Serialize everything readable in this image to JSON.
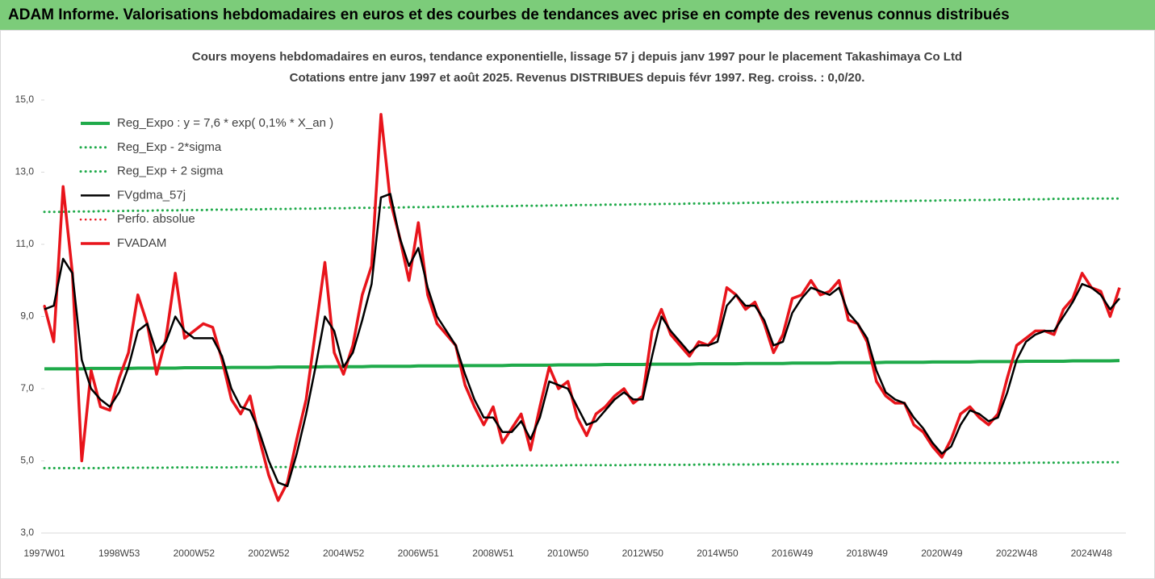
{
  "chart_data": {
    "type": "line",
    "title": "ADAM Informe. Valorisations hebdomadaires en euros et des courbes de tendances avec prise en compte des revenus connus distribués",
    "subtitle": [
      "Cours moyens hebdomadaires en euros, tendance exponentielle, lissage 57 j depuis janv 1997 pour le placement Takashimaya Co Ltd",
      "Cotations entre janv 1997 et août 2025. Revenus DISTRIBUES depuis févr 1997. Reg. croiss. : 0,0/20."
    ],
    "categories": [
      "1997W01",
      null,
      null,
      null,
      null,
      null,
      null,
      null,
      "1998W53",
      null,
      null,
      null,
      null,
      null,
      null,
      null,
      "2000W52",
      null,
      null,
      null,
      null,
      null,
      null,
      null,
      "2002W52",
      null,
      null,
      null,
      null,
      null,
      null,
      null,
      "2004W52",
      null,
      null,
      null,
      null,
      null,
      null,
      null,
      "2006W51",
      null,
      null,
      null,
      null,
      null,
      null,
      null,
      "2008W51",
      null,
      null,
      null,
      null,
      null,
      null,
      null,
      "2010W50",
      null,
      null,
      null,
      null,
      null,
      null,
      null,
      "2012W50",
      null,
      null,
      null,
      null,
      null,
      null,
      null,
      "2014W50",
      null,
      null,
      null,
      null,
      null,
      null,
      null,
      "2016W49",
      null,
      null,
      null,
      null,
      null,
      null,
      null,
      "2018W49",
      null,
      null,
      null,
      null,
      null,
      null,
      null,
      "2020W49",
      null,
      null,
      null,
      null,
      null,
      null,
      null,
      "2022W48",
      null,
      null,
      null,
      null,
      null,
      null,
      null,
      "2024W48",
      null,
      null,
      null
    ],
    "ylim": [
      3,
      15
    ],
    "yticks": [
      {
        "value": 3,
        "label": "3,0"
      },
      {
        "value": 5,
        "label": "5,0"
      },
      {
        "value": 7,
        "label": "7,0"
      },
      {
        "value": 9,
        "label": "9,0"
      },
      {
        "value": 11,
        "label": "11,0"
      },
      {
        "value": 13,
        "label": "13,0"
      },
      {
        "value": 15,
        "label": "15,0"
      }
    ],
    "grid": false,
    "legend": "top-left",
    "series": [
      {
        "name": "Reg_Expo : y = 7,6 * exp( 0,1% *  X_an )",
        "color": "#1faa4a",
        "dotted": false,
        "width": 4,
        "values": [
          7.55,
          7.55,
          7.55,
          7.55,
          7.55,
          7.56,
          7.56,
          7.56,
          7.56,
          7.56,
          7.57,
          7.57,
          7.57,
          7.57,
          7.57,
          7.58,
          7.58,
          7.58,
          7.58,
          7.58,
          7.59,
          7.59,
          7.59,
          7.59,
          7.59,
          7.6,
          7.6,
          7.6,
          7.6,
          7.6,
          7.61,
          7.61,
          7.61,
          7.61,
          7.61,
          7.62,
          7.62,
          7.62,
          7.62,
          7.62,
          7.63,
          7.63,
          7.63,
          7.63,
          7.63,
          7.64,
          7.64,
          7.64,
          7.64,
          7.64,
          7.65,
          7.65,
          7.65,
          7.65,
          7.65,
          7.66,
          7.66,
          7.66,
          7.66,
          7.66,
          7.67,
          7.67,
          7.67,
          7.67,
          7.67,
          7.68,
          7.68,
          7.68,
          7.68,
          7.68,
          7.69,
          7.69,
          7.69,
          7.69,
          7.69,
          7.7,
          7.7,
          7.7,
          7.7,
          7.7,
          7.71,
          7.71,
          7.71,
          7.71,
          7.71,
          7.72,
          7.72,
          7.72,
          7.72,
          7.72,
          7.73,
          7.73,
          7.73,
          7.73,
          7.73,
          7.74,
          7.74,
          7.74,
          7.74,
          7.74,
          7.75,
          7.75,
          7.75,
          7.75,
          7.75,
          7.76,
          7.76,
          7.76,
          7.76,
          7.76,
          7.77,
          7.77,
          7.77,
          7.77,
          7.77,
          7.78
        ]
      },
      {
        "name": "Reg_Exp - 2*sigma",
        "color": "#1faa4a",
        "dotted": true,
        "width": 3,
        "values": [
          4.8,
          4.8,
          4.8,
          4.8,
          4.8,
          4.8,
          4.8,
          4.81,
          4.81,
          4.81,
          4.81,
          4.81,
          4.81,
          4.81,
          4.82,
          4.82,
          4.82,
          4.82,
          4.82,
          4.82,
          4.82,
          4.83,
          4.83,
          4.83,
          4.83,
          4.83,
          4.83,
          4.83,
          4.84,
          4.84,
          4.84,
          4.84,
          4.84,
          4.84,
          4.84,
          4.85,
          4.85,
          4.85,
          4.85,
          4.85,
          4.85,
          4.85,
          4.86,
          4.86,
          4.86,
          4.86,
          4.86,
          4.86,
          4.86,
          4.87,
          4.87,
          4.87,
          4.87,
          4.87,
          4.87,
          4.87,
          4.88,
          4.88,
          4.88,
          4.88,
          4.88,
          4.88,
          4.88,
          4.89,
          4.89,
          4.89,
          4.89,
          4.89,
          4.89,
          4.89,
          4.9,
          4.9,
          4.9,
          4.9,
          4.9,
          4.9,
          4.9,
          4.91,
          4.91,
          4.91,
          4.91,
          4.91,
          4.91,
          4.91,
          4.92,
          4.92,
          4.92,
          4.92,
          4.92,
          4.92,
          4.92,
          4.93,
          4.93,
          4.93,
          4.93,
          4.93,
          4.93,
          4.93,
          4.94,
          4.94,
          4.94,
          4.94,
          4.94,
          4.94,
          4.94,
          4.95,
          4.95,
          4.95,
          4.95,
          4.95,
          4.95,
          4.95,
          4.96,
          4.96,
          4.96,
          4.96
        ]
      },
      {
        "name": "Reg_Exp + 2 sigma",
        "color": "#1faa4a",
        "dotted": true,
        "width": 3,
        "values": [
          11.9,
          11.9,
          11.9,
          11.91,
          11.91,
          11.91,
          11.92,
          11.92,
          11.92,
          11.93,
          11.93,
          11.93,
          11.94,
          11.94,
          11.94,
          11.95,
          11.95,
          11.95,
          11.96,
          11.96,
          11.96,
          11.97,
          11.97,
          11.97,
          11.98,
          11.98,
          11.98,
          11.99,
          11.99,
          11.99,
          12.0,
          12.0,
          12.0,
          12.01,
          12.01,
          12.01,
          12.02,
          12.02,
          12.02,
          12.03,
          12.03,
          12.03,
          12.04,
          12.04,
          12.04,
          12.05,
          12.05,
          12.05,
          12.06,
          12.06,
          12.06,
          12.07,
          12.07,
          12.07,
          12.08,
          12.08,
          12.08,
          12.09,
          12.09,
          12.09,
          12.1,
          12.1,
          12.1,
          12.11,
          12.11,
          12.11,
          12.12,
          12.12,
          12.12,
          12.13,
          12.13,
          12.13,
          12.14,
          12.14,
          12.14,
          12.15,
          12.15,
          12.15,
          12.16,
          12.16,
          12.16,
          12.17,
          12.17,
          12.17,
          12.18,
          12.18,
          12.18,
          12.19,
          12.19,
          12.19,
          12.2,
          12.2,
          12.2,
          12.21,
          12.21,
          12.21,
          12.22,
          12.22,
          12.22,
          12.23,
          12.23,
          12.23,
          12.24,
          12.24,
          12.24,
          12.25,
          12.25,
          12.25,
          12.26,
          12.26,
          12.26,
          12.27,
          12.27,
          12.27,
          12.27,
          12.27
        ]
      },
      {
        "name": "FVgdma_57j",
        "color": "#000000",
        "dotted": false,
        "width": 2.5,
        "values": [
          9.2,
          9.3,
          10.6,
          10.2,
          7.8,
          7.0,
          6.7,
          6.5,
          6.9,
          7.6,
          8.6,
          8.8,
          8.0,
          8.3,
          9.0,
          8.6,
          8.4,
          8.4,
          8.4,
          7.9,
          7.0,
          6.5,
          6.4,
          5.8,
          5.0,
          4.4,
          4.3,
          5.2,
          6.3,
          7.6,
          9.0,
          8.6,
          7.6,
          8.0,
          8.9,
          9.9,
          12.3,
          12.4,
          11.2,
          10.4,
          10.9,
          9.8,
          9.0,
          8.6,
          8.2,
          7.4,
          6.7,
          6.2,
          6.2,
          5.8,
          5.8,
          6.1,
          5.6,
          6.2,
          7.2,
          7.1,
          7.0,
          6.5,
          6.0,
          6.1,
          6.4,
          6.7,
          6.9,
          6.7,
          6.7,
          7.9,
          9.0,
          8.6,
          8.3,
          8.0,
          8.2,
          8.2,
          8.3,
          9.3,
          9.6,
          9.3,
          9.3,
          8.9,
          8.2,
          8.3,
          9.1,
          9.5,
          9.8,
          9.7,
          9.6,
          9.8,
          9.1,
          8.8,
          8.4,
          7.5,
          6.9,
          6.7,
          6.6,
          6.2,
          5.9,
          5.5,
          5.2,
          5.4,
          6.0,
          6.4,
          6.3,
          6.1,
          6.2,
          6.9,
          7.8,
          8.3,
          8.5,
          8.6,
          8.6,
          9.0,
          9.4,
          9.9,
          9.8,
          9.6,
          9.2,
          9.5
        ]
      },
      {
        "name": "Perfo. absolue",
        "color": "#e8141b",
        "dotted": true,
        "width": 2.5,
        "values": [
          9.3,
          8.3,
          12.6,
          10.2,
          5.0,
          7.5,
          6.5,
          6.4,
          7.3,
          8.0,
          9.6,
          8.8,
          7.4,
          8.4,
          10.2,
          8.4,
          8.6,
          8.8,
          8.7,
          7.8,
          6.7,
          6.3,
          6.8,
          5.6,
          4.6,
          3.9,
          4.4,
          5.6,
          6.7,
          8.6,
          10.5,
          8.0,
          7.4,
          8.2,
          9.6,
          10.4,
          14.6,
          12.2,
          11.2,
          10.0,
          11.6,
          9.6,
          8.8,
          8.5,
          8.2,
          7.1,
          6.5,
          6.0,
          6.5,
          5.5,
          5.9,
          6.3,
          5.3,
          6.5,
          7.6,
          7.0,
          7.2,
          6.2,
          5.7,
          6.3,
          6.5,
          6.8,
          7.0,
          6.6,
          6.8,
          8.6,
          9.2,
          8.5,
          8.2,
          7.9,
          8.3,
          8.2,
          8.5,
          9.8,
          9.6,
          9.2,
          9.4,
          8.8,
          8.0,
          8.5,
          9.5,
          9.6,
          10.0,
          9.6,
          9.7,
          10.0,
          8.9,
          8.8,
          8.3,
          7.2,
          6.8,
          6.6,
          6.6,
          6.0,
          5.8,
          5.4,
          5.1,
          5.6,
          6.3,
          6.5,
          6.2,
          6.0,
          6.3,
          7.3,
          8.2,
          8.4,
          8.6,
          8.6,
          8.5,
          9.2,
          9.5,
          10.2,
          9.8,
          9.7,
          9.0,
          9.8
        ]
      },
      {
        "name": "FVADAM",
        "color": "#e8141b",
        "dotted": false,
        "width": 3.5,
        "values": [
          9.3,
          8.3,
          12.6,
          10.2,
          5.0,
          7.5,
          6.5,
          6.4,
          7.3,
          8.0,
          9.6,
          8.8,
          7.4,
          8.4,
          10.2,
          8.4,
          8.6,
          8.8,
          8.7,
          7.8,
          6.7,
          6.3,
          6.8,
          5.6,
          4.6,
          3.9,
          4.4,
          5.6,
          6.7,
          8.6,
          10.5,
          8.0,
          7.4,
          8.2,
          9.6,
          10.4,
          14.6,
          12.2,
          11.2,
          10.0,
          11.6,
          9.6,
          8.8,
          8.5,
          8.2,
          7.1,
          6.5,
          6.0,
          6.5,
          5.5,
          5.9,
          6.3,
          5.3,
          6.5,
          7.6,
          7.0,
          7.2,
          6.2,
          5.7,
          6.3,
          6.5,
          6.8,
          7.0,
          6.6,
          6.8,
          8.6,
          9.2,
          8.5,
          8.2,
          7.9,
          8.3,
          8.2,
          8.5,
          9.8,
          9.6,
          9.2,
          9.4,
          8.8,
          8.0,
          8.5,
          9.5,
          9.6,
          10.0,
          9.6,
          9.7,
          10.0,
          8.9,
          8.8,
          8.3,
          7.2,
          6.8,
          6.6,
          6.6,
          6.0,
          5.8,
          5.4,
          5.1,
          5.6,
          6.3,
          6.5,
          6.2,
          6.0,
          6.3,
          7.3,
          8.2,
          8.4,
          8.6,
          8.6,
          8.5,
          9.2,
          9.5,
          10.2,
          9.8,
          9.7,
          9.0,
          9.8
        ]
      }
    ]
  }
}
